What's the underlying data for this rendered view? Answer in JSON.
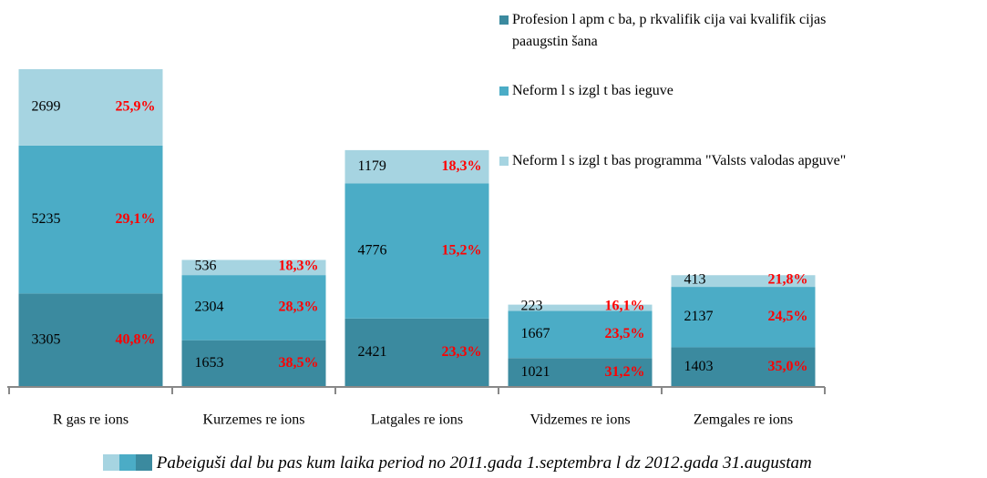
{
  "chart_data": {
    "type": "stacked_bar",
    "categories": [
      "R gas re ions",
      "Kurzemes re ions",
      "Latgales re ions",
      "Vidzemes re ions",
      "Zemgales re ions"
    ],
    "series": [
      {
        "name": "Profesion l apm c ba, p rkvalifik cija vai kvalifik cijas paaugstin šana",
        "color": "#3b8a9f",
        "values": [
          3305,
          1653,
          2421,
          1021,
          1403
        ],
        "percentages": [
          40.8,
          38.5,
          23.3,
          31.2,
          35.0
        ],
        "percentage_labels": [
          "40,8%",
          "38,5%",
          "23,3%",
          "31,2%",
          "35,0%"
        ]
      },
      {
        "name": "Neform l s izgl t bas ieguve",
        "color": "#4bacc6",
        "values": [
          5235,
          2304,
          4776,
          1667,
          2137
        ],
        "percentages": [
          29.1,
          28.3,
          15.2,
          23.5,
          24.5
        ],
        "percentage_labels": [
          "29,1%",
          "28,3%",
          "15,2%",
          "23,5%",
          "24,5%"
        ]
      },
      {
        "name": "Neform l s izgl t bas programma \"Valsts valodas apguve\"",
        "color": "#a6d4e1",
        "values": [
          2699,
          536,
          1179,
          223,
          413
        ],
        "percentages": [
          25.9,
          18.3,
          18.3,
          16.1,
          21.8
        ],
        "percentage_labels": [
          "25,9%",
          "18,3%",
          "18,3%",
          "16,1%",
          "21,8%"
        ]
      }
    ],
    "caption": "Pabeiguši dal bu pas kum laika period no 2011.gada 1.septembra l dz 2012.gada 31.augustam",
    "legend": "top-right"
  }
}
